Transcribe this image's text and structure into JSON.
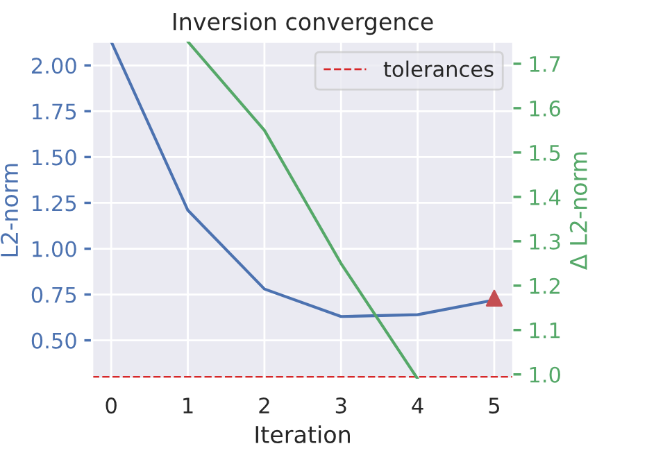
{
  "chart_data": {
    "type": "line",
    "title": "Inversion convergence",
    "xlabel": "Iteration",
    "ylabel": "L2-norm",
    "y2label": "Δ L2-norm",
    "x": [
      0,
      1,
      2,
      3,
      4,
      5
    ],
    "series": [
      {
        "color": "#4c72b0",
        "values": [
          2.13,
          1.21,
          0.78,
          0.63,
          0.64,
          0.72
        ]
      },
      {
        "color": "#55a868",
        "axis": "y2",
        "values": [
          null,
          1.75,
          1.55,
          1.25,
          0.99,
          null
        ]
      },
      {
        "type": "scatter",
        "marker": "triangle",
        "color": "#c44e52",
        "x": [
          5
        ],
        "values": [
          0.73
        ]
      }
    ],
    "ref_lines": [
      {
        "axis": "y",
        "value": 0.3,
        "label": "tolerances",
        "color": "#d62728",
        "line_style": "dashed"
      }
    ],
    "xlim": [
      -0.25,
      5.25
    ],
    "xticks": [
      0,
      1,
      2,
      3,
      4,
      5
    ],
    "ylim": [
      0.29,
      2.13
    ],
    "yticks": [
      {
        "value": 0.5,
        "label": "0.50"
      },
      {
        "value": 0.75,
        "label": "0.75"
      },
      {
        "value": 1.0,
        "label": "1.00"
      },
      {
        "value": 1.25,
        "label": "1.25"
      },
      {
        "value": 1.5,
        "label": "1.50"
      },
      {
        "value": 1.75,
        "label": "1.75"
      },
      {
        "value": 2.0,
        "label": "2.00"
      }
    ],
    "y2lim": [
      0.99,
      1.75
    ],
    "y2ticks": [
      {
        "value": 1.0,
        "label": "1.0"
      },
      1.1,
      1.2,
      1.3,
      1.4,
      1.5,
      1.6,
      1.7
    ],
    "grid": true,
    "legend": "top right"
  }
}
